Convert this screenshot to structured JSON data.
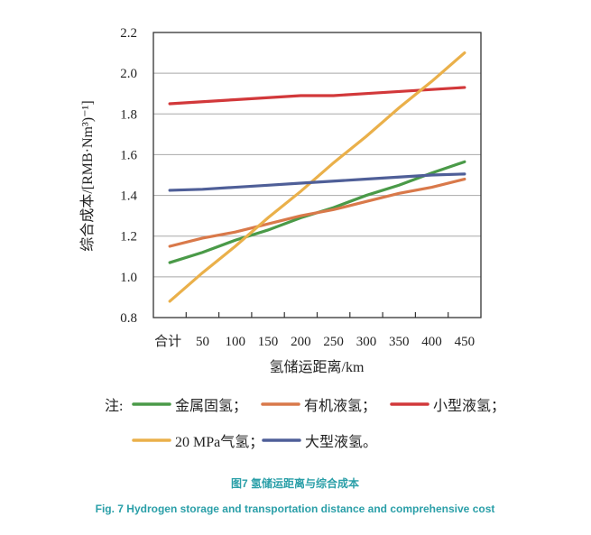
{
  "chart_data": {
    "type": "line",
    "ylabel": "综合成本/[RMB·Nm³)⁻¹]",
    "xlabel": "氢储运距离/km",
    "ylim": [
      0.8,
      2.2
    ],
    "yticks": [
      "0.8",
      "1.0",
      "1.2",
      "1.4",
      "1.6",
      "1.8",
      "2.0",
      "2.2"
    ],
    "ytick_values": [
      0.8,
      1.0,
      1.2,
      1.4,
      1.6,
      1.8,
      2.0,
      2.2
    ],
    "categories": [
      "合计",
      "50",
      "100",
      "150",
      "200",
      "250",
      "300",
      "350",
      "400",
      "450"
    ],
    "grid": true,
    "legend_prefix": "注:",
    "series": [
      {
        "name": "金属固氢；",
        "color": "#4a9a48",
        "values": [
          1.07,
          1.12,
          1.18,
          1.23,
          1.29,
          1.34,
          1.4,
          1.45,
          1.51,
          1.565
        ]
      },
      {
        "name": "有机液氢；",
        "color": "#d9794a",
        "values": [
          1.15,
          1.19,
          1.22,
          1.26,
          1.3,
          1.33,
          1.37,
          1.41,
          1.44,
          1.48
        ]
      },
      {
        "name": "小型液氢；",
        "color": "#d2383a",
        "values": [
          1.85,
          1.86,
          1.87,
          1.88,
          1.89,
          1.89,
          1.9,
          1.91,
          1.92,
          1.93
        ]
      },
      {
        "name": "20 MPa气氢；",
        "color": "#eab04a",
        "values": [
          0.88,
          1.02,
          1.15,
          1.29,
          1.42,
          1.56,
          1.69,
          1.83,
          1.96,
          2.1
        ]
      },
      {
        "name": "大型液氢。",
        "color": "#4f5f98",
        "values": [
          1.425,
          1.43,
          1.44,
          1.45,
          1.46,
          1.47,
          1.48,
          1.49,
          1.5,
          1.505
        ]
      }
    ],
    "caption_cn": "图7 氢储运距离与综合成本",
    "caption_en": "Fig. 7 Hydrogen storage and transportation distance and comprehensive cost"
  }
}
